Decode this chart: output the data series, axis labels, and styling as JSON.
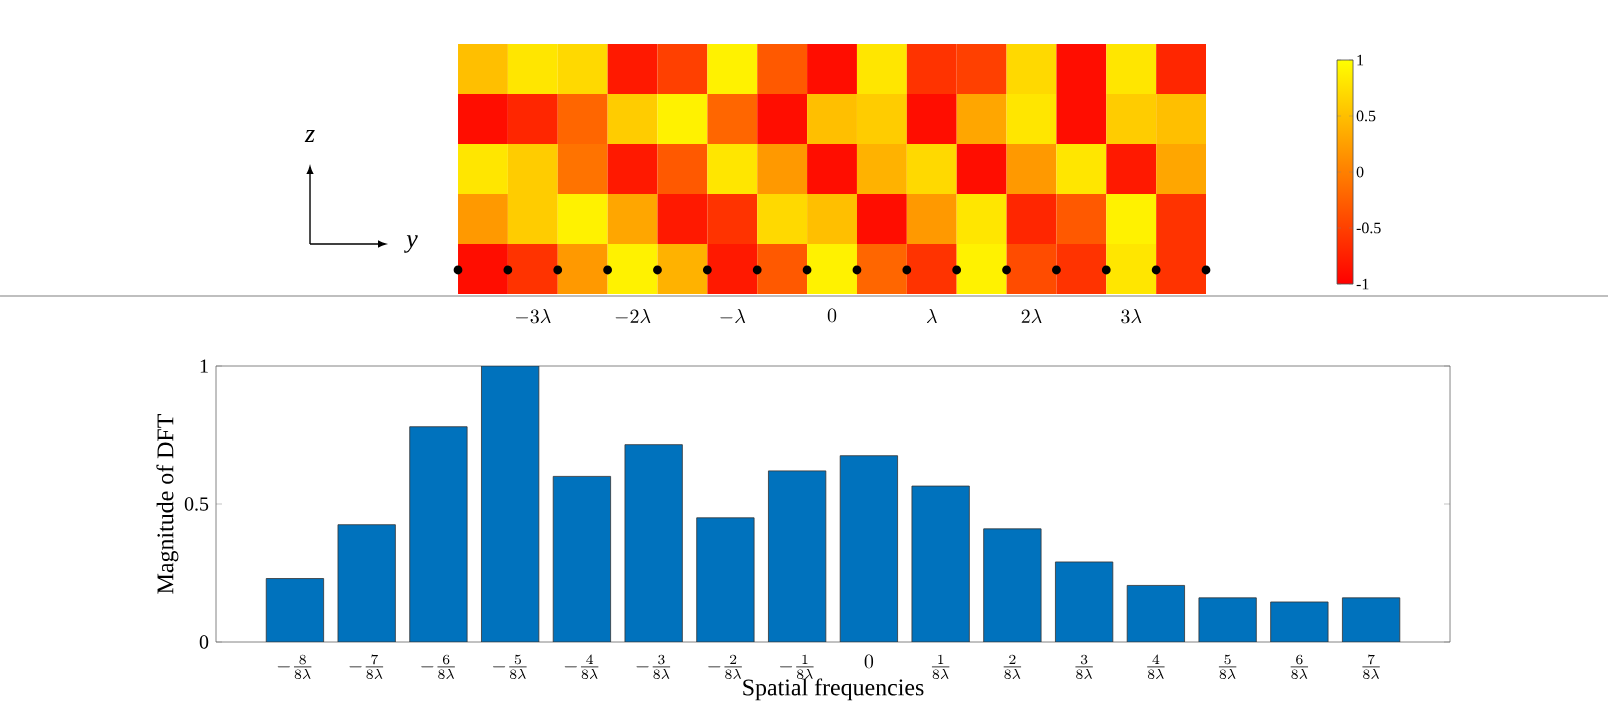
{
  "chart_data": [
    {
      "type": "heatmap",
      "categories": [
        null,
        "-3\\lambda",
        null,
        "-2\\lambda",
        null,
        "-\\lambda",
        null,
        "0",
        null,
        "\\lambda",
        null,
        "2\\lambda",
        null,
        "3\\lambda",
        null
      ],
      "y_categories": [
        null,
        null,
        null,
        null,
        null
      ],
      "cells": [
        [
          0.5,
          0.8,
          0.7,
          -0.8,
          -0.5,
          0.9,
          -0.3,
          -0.9,
          0.8,
          -0.6,
          -0.5,
          0.7,
          -0.9,
          0.8,
          -0.7
        ],
        [
          -0.9,
          -0.7,
          -0.2,
          0.6,
          0.9,
          -0.2,
          -0.9,
          0.5,
          0.6,
          -0.9,
          0.3,
          0.8,
          -0.9,
          0.6,
          0.5
        ],
        [
          0.8,
          0.6,
          -0.1,
          -0.8,
          -0.3,
          0.8,
          0.2,
          -0.9,
          0.4,
          0.7,
          -0.9,
          0.2,
          0.8,
          -0.8,
          0.3
        ],
        [
          0.2,
          0.6,
          0.9,
          0.3,
          -0.8,
          -0.6,
          0.7,
          0.5,
          -0.9,
          0.2,
          0.8,
          -0.7,
          -0.3,
          0.9,
          -0.6
        ],
        [
          -0.9,
          -0.6,
          0.2,
          0.9,
          0.4,
          -0.8,
          -0.3,
          0.9,
          -0.2,
          -0.6,
          0.9,
          -0.4,
          -0.6,
          0.8,
          -0.6
        ]
      ],
      "clim": [
        -1,
        1
      ],
      "cticks": [
        -1,
        -0.5,
        0,
        0.5,
        1
      ],
      "tick_labels": "x",
      "annotations": [
        "z",
        "y"
      ]
    },
    {
      "type": "bar",
      "categories": [
        "-\\frac{8}{8\\lambda}",
        "-\\frac{7}{8\\lambda}",
        "-\\frac{6}{8\\lambda}",
        "-\\frac{5}{8\\lambda}",
        "-\\frac{4}{8\\lambda}",
        "-\\frac{3}{8\\lambda}",
        "-\\frac{2}{8\\lambda}",
        "-\\frac{1}{8\\lambda}",
        "0",
        "\\frac{1}{8\\lambda}",
        "\\frac{2}{8\\lambda}",
        "\\frac{3}{8\\lambda}",
        "\\frac{4}{8\\lambda}",
        "\\frac{5}{8\\lambda}",
        "\\frac{6}{8\\lambda}",
        "\\frac{7}{8\\lambda}"
      ],
      "values": [
        0.23,
        0.425,
        0.78,
        1.0,
        0.6,
        0.715,
        0.45,
        0.62,
        0.675,
        0.565,
        0.41,
        0.29,
        0.205,
        0.16,
        0.145,
        0.16
      ],
      "color": "#0072bd",
      "xlabel": "Spatial frequencies",
      "ylabel": "Magnitude of DFT",
      "ylim": [
        0,
        1
      ],
      "yticks": [
        0,
        0.5,
        1
      ]
    }
  ]
}
